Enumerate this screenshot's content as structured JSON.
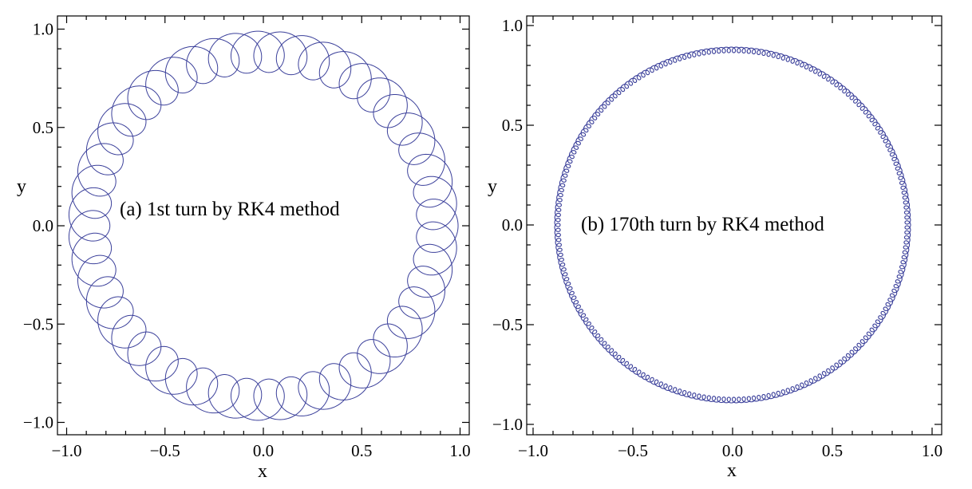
{
  "chart_data": [
    {
      "type": "line",
      "panel": "a",
      "annotation": "(a) 1st turn by RK4 method",
      "xlabel": "x",
      "ylabel": "y",
      "xlim": [
        -1.0,
        1.0
      ],
      "ylim": [
        -1.0,
        1.0
      ],
      "xticks": [
        "−1.0",
        "−0.5",
        "0.0",
        "0.5",
        "1.0"
      ],
      "yticks": [
        "−1.0",
        "−0.5",
        "0.0",
        "0.5",
        "1.0"
      ],
      "grid": false,
      "series": [
        {
          "guiding_radius": 0.885,
          "loop_radius": 0.105,
          "loops": 48
        }
      ],
      "color": "#3a3f9a"
    },
    {
      "type": "line",
      "panel": "b",
      "annotation": "(b) 170th turn by RK4 method",
      "xlabel": "x",
      "ylabel": "y",
      "xlim": [
        -1.0,
        1.0
      ],
      "ylim": [
        -1.0,
        1.0
      ],
      "xticks": [
        "−1.0",
        "−0.5",
        "0.0",
        "0.5",
        "1.0"
      ],
      "yticks": [
        "−1.0",
        "−0.5",
        "0.0",
        "0.5",
        "1.0"
      ],
      "grid": false,
      "series": [
        {
          "guiding_radius": 0.878,
          "loop_radius": 0.014,
          "loops": 220
        }
      ],
      "color": "#3a3f9a"
    }
  ]
}
